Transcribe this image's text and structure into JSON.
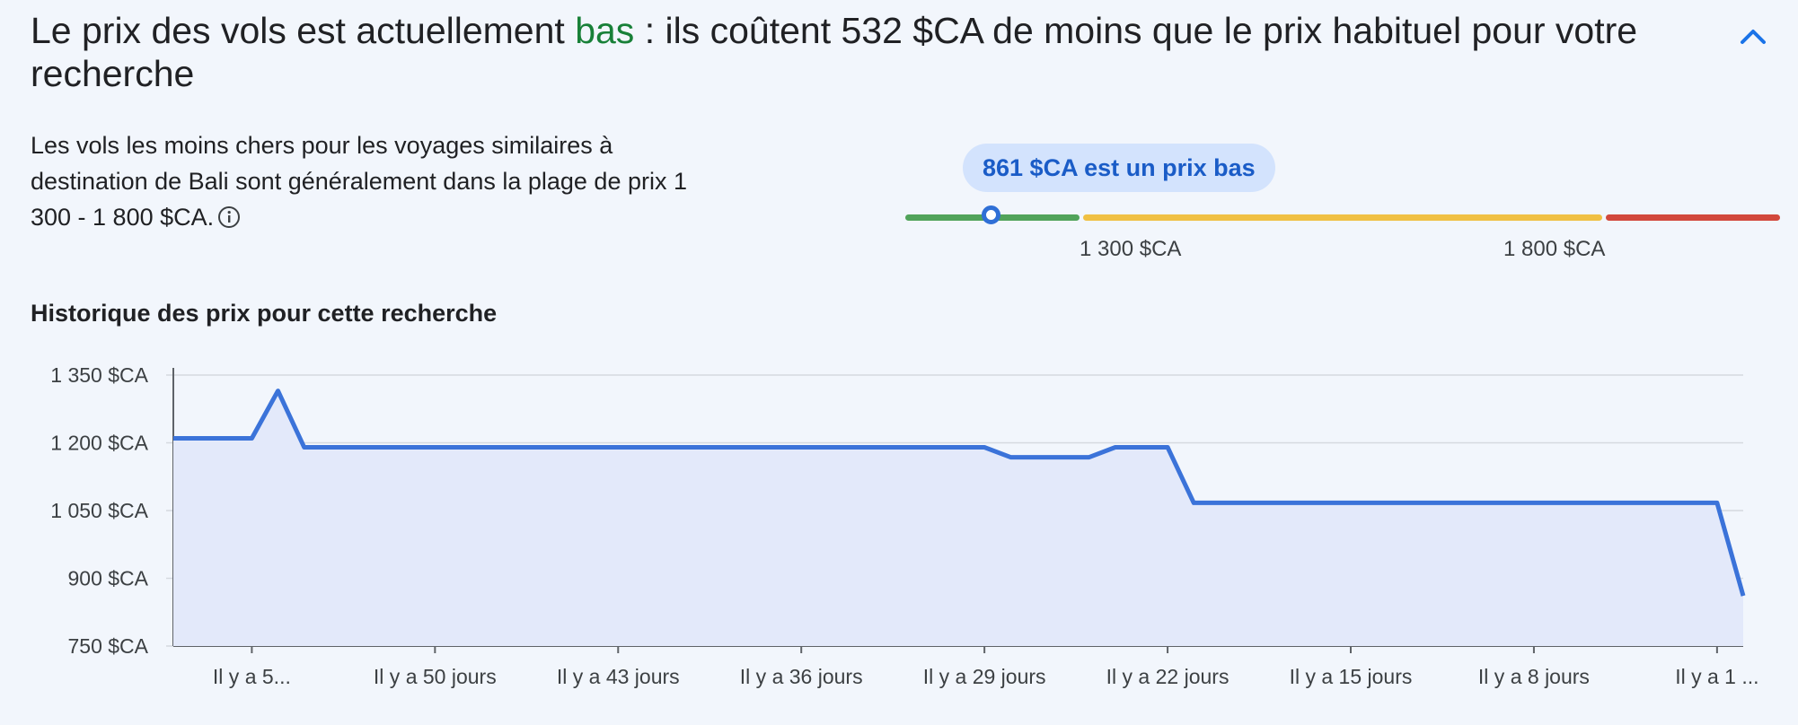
{
  "headline": {
    "prefix": "Le prix des vols est actuellement ",
    "level": "bas",
    "suffix": " : ils coûtent 532 $CA de moins que le prix habituel pour votre recherche"
  },
  "collapse_icon": "chevron-up-icon",
  "description": {
    "text": "Les vols les moins chers pour les voyages similaires à destination de Bali sont généralement dans la plage de prix 1 300 - 1 800 $CA.",
    "info_icon": "info-icon"
  },
  "price_range": {
    "bubble": "861 $CA est un prix bas",
    "current_price": 861,
    "low_bound": 1300,
    "high_bound": 1800,
    "low_label": "1 300 $CA",
    "high_label": "1 800 $CA",
    "colors": {
      "low": "#51a35a",
      "typical": "#f0c043",
      "high": "#d2483c",
      "marker": "#2f6fd6"
    }
  },
  "history": {
    "title": "Historique des prix pour cette recherche"
  },
  "chart_data": {
    "type": "area",
    "y_tick_labels": [
      "1 350 $CA",
      "1 200 $CA",
      "1 050 $CA",
      "900 $CA",
      "750 $CA"
    ],
    "y_ticks": [
      1350,
      1200,
      1050,
      900,
      750
    ],
    "ylim": [
      750,
      1350
    ],
    "x_tick_labels": [
      "Il y a 5...",
      "Il y a 50 jours",
      "Il y a 43 jours",
      "Il y a 36 jours",
      "Il y a 29 jours",
      "Il y a 22 jours",
      "Il y a 15 jours",
      "Il y a 8 jours",
      "Il y a 1 ..."
    ],
    "x_tick_days": [
      57,
      50,
      43,
      36,
      29,
      22,
      15,
      8,
      1
    ],
    "xlim": [
      60,
      0
    ],
    "grid": true,
    "line_color": "#3b73d9",
    "fill_color": "#e3e9fa",
    "series": [
      {
        "x": [
          60,
          57,
          56,
          55,
          29,
          28,
          25,
          24,
          22,
          21,
          1,
          0
        ],
        "y": [
          1210,
          1210,
          1315,
          1190,
          1190,
          1168,
          1168,
          1190,
          1190,
          1067,
          1067,
          861
        ]
      }
    ]
  }
}
